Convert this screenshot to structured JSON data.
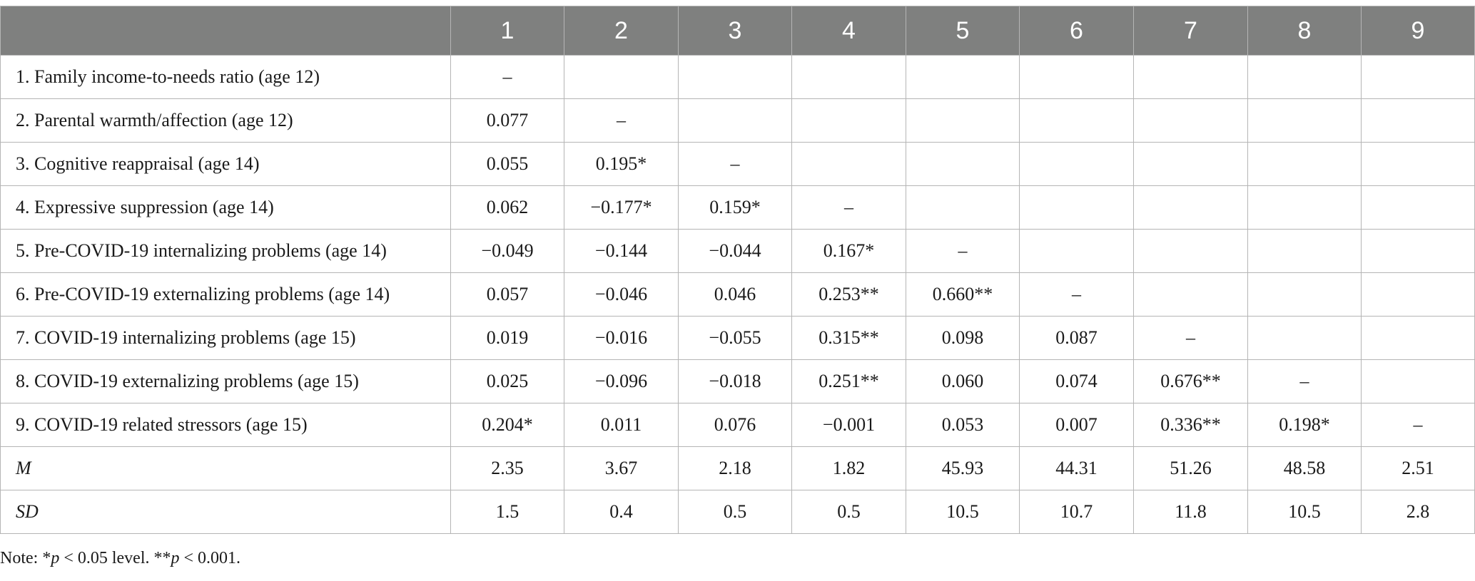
{
  "table": {
    "headers": [
      "",
      "1",
      "2",
      "3",
      "4",
      "5",
      "6",
      "7",
      "8",
      "9"
    ],
    "rows": [
      {
        "label": "1.  Family income-to-needs ratio (age 12)",
        "cells": [
          "–",
          "",
          "",
          "",
          "",
          "",
          "",
          "",
          ""
        ]
      },
      {
        "label": "2.  Parental warmth/affection (age 12)",
        "cells": [
          "0.077",
          "–",
          "",
          "",
          "",
          "",
          "",
          "",
          ""
        ]
      },
      {
        "label": "3.  Cognitive reappraisal (age 14)",
        "cells": [
          "0.055",
          "0.195*",
          "–",
          "",
          "",
          "",
          "",
          "",
          ""
        ]
      },
      {
        "label": "4.  Expressive suppression (age 14)",
        "cells": [
          "0.062",
          "−0.177*",
          "0.159*",
          "–",
          "",
          "",
          "",
          "",
          ""
        ]
      },
      {
        "label": "5.  Pre-COVID-19 internalizing problems (age 14)",
        "cells": [
          "−0.049",
          "−0.144",
          "−0.044",
          "0.167*",
          "–",
          "",
          "",
          "",
          ""
        ]
      },
      {
        "label": "6.  Pre-COVID-19 externalizing problems (age 14)",
        "cells": [
          "0.057",
          "−0.046",
          "0.046",
          "0.253**",
          "0.660**",
          "–",
          "",
          "",
          ""
        ]
      },
      {
        "label": "7.  COVID-19 internalizing problems (age 15)",
        "cells": [
          "0.019",
          "−0.016",
          "−0.055",
          "0.315**",
          "0.098",
          "0.087",
          "–",
          "",
          ""
        ]
      },
      {
        "label": "8.  COVID-19 externalizing problems (age 15)",
        "cells": [
          "0.025",
          "−0.096",
          "−0.018",
          "0.251**",
          "0.060",
          "0.074",
          "0.676**",
          "–",
          ""
        ]
      },
      {
        "label": "9.  COVID-19 related stressors (age 15)",
        "cells": [
          "0.204*",
          "0.011",
          "0.076",
          "−0.001",
          "0.053",
          "0.007",
          "0.336**",
          "0.198*",
          "–"
        ]
      },
      {
        "label": "M",
        "italic": true,
        "cells": [
          "2.35",
          "3.67",
          "2.18",
          "1.82",
          "45.93",
          "44.31",
          "51.26",
          "48.58",
          "2.51"
        ]
      },
      {
        "label": "SD",
        "italic": true,
        "cells": [
          "1.5",
          "0.4",
          "0.5",
          "0.5",
          "10.5",
          "10.7",
          "11.8",
          "10.5",
          "2.8"
        ]
      }
    ]
  },
  "note": {
    "prefix": "Note: *",
    "p1": "p",
    "mid": " < 0.05 level. **",
    "p2": "p",
    "suffix": " < 0.001."
  }
}
